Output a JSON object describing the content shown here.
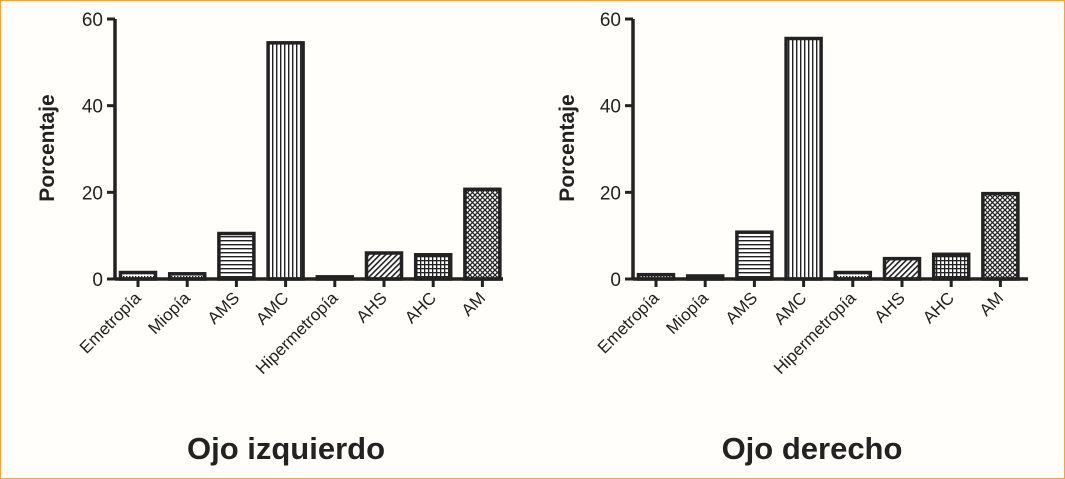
{
  "colors": {
    "frame": "#f0a63c",
    "ink": "#222222"
  },
  "chart_data": [
    {
      "type": "bar",
      "title": "Ojo izquierdo",
      "ylabel": "Porcentaje",
      "xlabel": "",
      "ylim": [
        0,
        60
      ],
      "yticks": [
        0,
        20,
        40,
        60
      ],
      "categories": [
        "Emetropía",
        "Miopía",
        "AMS",
        "AMC",
        "Hipermetropía",
        "AHS",
        "AHC",
        "AM"
      ],
      "patterns": [
        "dots",
        "dots",
        "hlines",
        "vlines",
        "dots",
        "diag",
        "grid",
        "crosshatch"
      ],
      "values": [
        1.5,
        1.2,
        10.5,
        54.5,
        0.5,
        6.0,
        5.6,
        20.7
      ]
    },
    {
      "type": "bar",
      "title": "Ojo derecho",
      "ylabel": "Porcentaje",
      "xlabel": "",
      "ylim": [
        0,
        60
      ],
      "yticks": [
        0,
        20,
        40,
        60
      ],
      "categories": [
        "Emetropía",
        "Miopía",
        "AMS",
        "AMC",
        "Hipermetropía",
        "AHS",
        "AHC",
        "AM"
      ],
      "patterns": [
        "dots",
        "dots",
        "hlines",
        "vlines",
        "dots",
        "diag",
        "grid",
        "crosshatch"
      ],
      "values": [
        1.0,
        0.7,
        10.8,
        55.5,
        1.5,
        4.7,
        5.7,
        19.7
      ]
    }
  ]
}
